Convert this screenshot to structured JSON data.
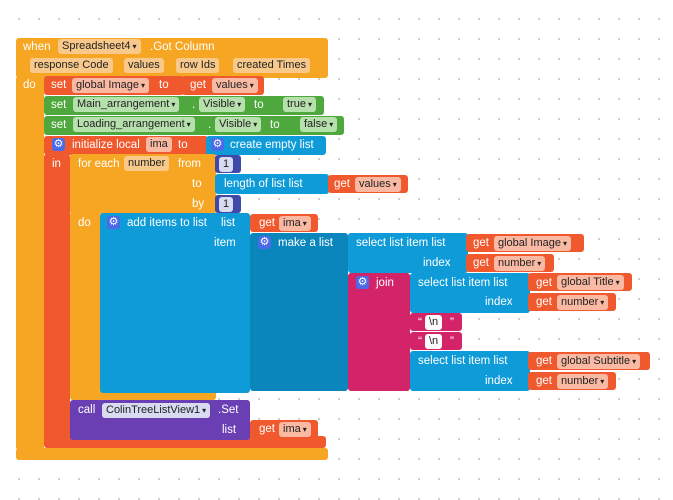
{
  "event": {
    "when_label": "when",
    "component": "Spreadsheet4",
    "event_name": ".Got Column",
    "params": [
      "response Code",
      "values",
      "row Ids",
      "created Times"
    ],
    "do_label": "do"
  },
  "stmt_set_global": {
    "set": "set",
    "var": "global Image",
    "to": "to",
    "get": "get",
    "get_var": "values"
  },
  "stmt_set_main": {
    "set": "set",
    "component": "Main_arrangement",
    "prop": "Visible",
    "to": "to",
    "value": "true"
  },
  "stmt_set_loading": {
    "set": "set",
    "component": "Loading_arrangement",
    "prop": "Visible",
    "to": "to",
    "value": "false"
  },
  "init_local": {
    "label": "initialize local",
    "name": "ima",
    "to": "to",
    "create": "create empty list",
    "in": "in"
  },
  "foreach": {
    "label": "for each",
    "var": "number",
    "from": "from",
    "from_value": "1",
    "to": "to",
    "length_label": "length of list  list",
    "get": "get",
    "get_var": "values",
    "by": "by",
    "by_value": "1",
    "do": "do"
  },
  "add_items": {
    "label": "add items to list",
    "list_label": "list",
    "get": "get",
    "get_var": "ima",
    "item_label": "item",
    "make_list": "make a list"
  },
  "select1": {
    "label": "select list item  list",
    "get": "get",
    "get_var": "global Image",
    "index_label": "index",
    "index_get": "get",
    "index_var": "number"
  },
  "join": {
    "label": "join"
  },
  "select2": {
    "label": "select list item  list",
    "get": "get",
    "get_var": "global Title",
    "index_label": "index",
    "index_get": "get",
    "index_var": "number"
  },
  "str1": "\\n",
  "str2": "\\n",
  "select3": {
    "label": "select list item  list",
    "get": "get",
    "get_var": "global Subtitle",
    "index_label": "index",
    "index_get": "get",
    "index_var": "number"
  },
  "call": {
    "label": "call",
    "component": "ColinTreeListView1",
    "method": ".Set",
    "list_label": "list",
    "get": "get",
    "get_var": "ima"
  }
}
